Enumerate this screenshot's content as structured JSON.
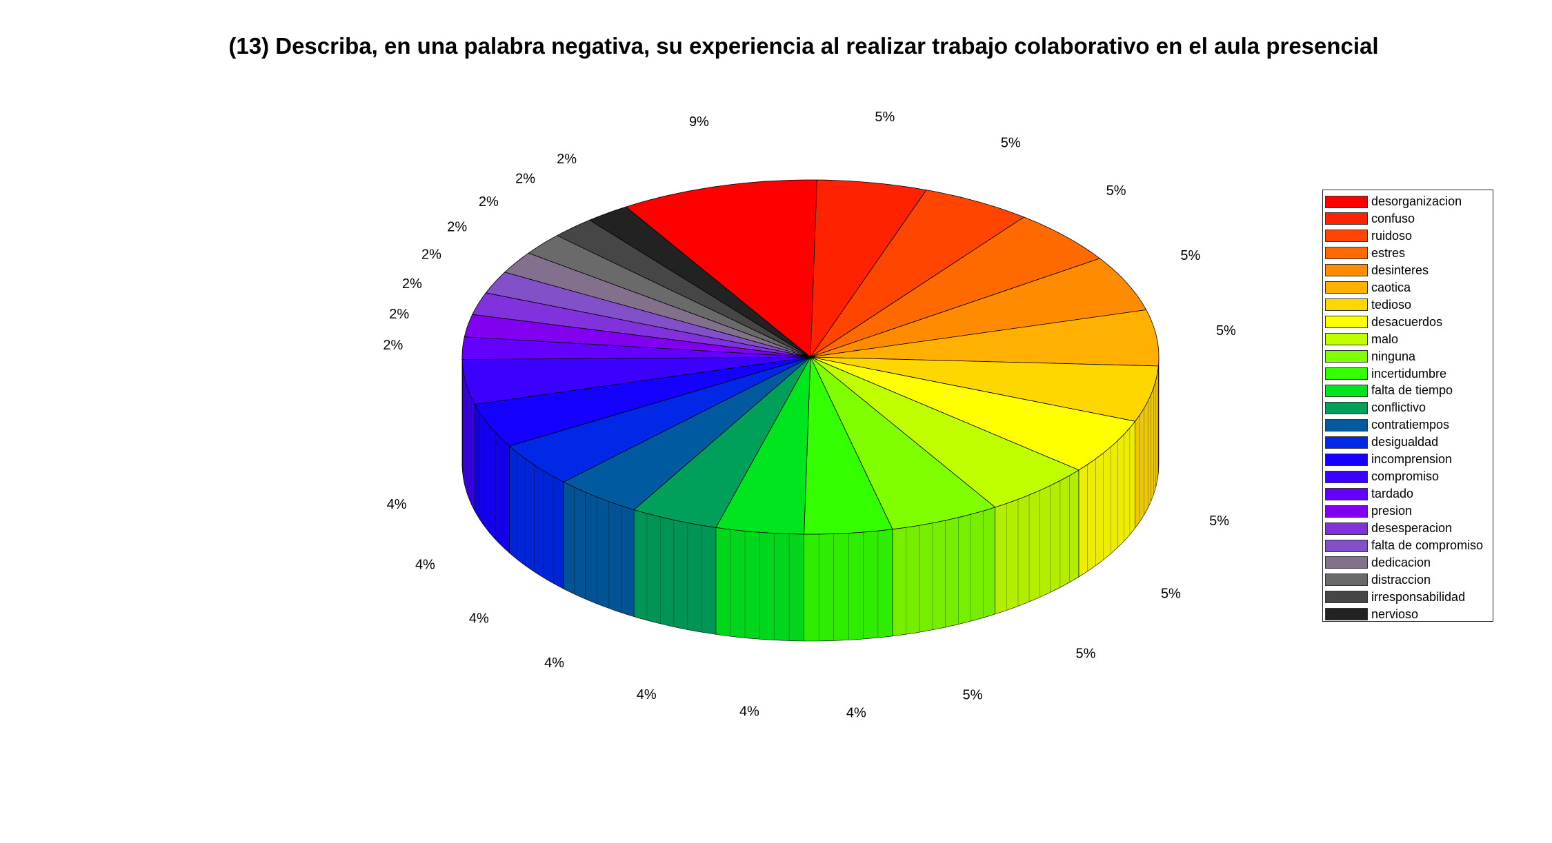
{
  "chart_data": {
    "type": "pie",
    "title": "(13) Describa, en una palabra negativa, su experiencia al realizar trabajo colaborativo en el aula presencial",
    "slices": [
      {
        "label": "desorganizacion",
        "value": 9,
        "text": "9%",
        "color": "#ff0000"
      },
      {
        "label": "confuso",
        "value": 5,
        "text": "5%",
        "color": "#ff2200"
      },
      {
        "label": "ruidoso",
        "value": 5,
        "text": "5%",
        "color": "#ff4500"
      },
      {
        "label": "estres",
        "value": 5,
        "text": "5%",
        "color": "#ff6a00"
      },
      {
        "label": "desinteres",
        "value": 5,
        "text": "5%",
        "color": "#ff8c00"
      },
      {
        "label": "caotica",
        "value": 5,
        "text": "5%",
        "color": "#ffb000"
      },
      {
        "label": "tedioso",
        "value": 5,
        "text": "5%",
        "color": "#ffd700"
      },
      {
        "label": "desacuerdos",
        "value": 5,
        "text": "5%",
        "color": "#ffff00"
      },
      {
        "label": "malo",
        "value": 5,
        "text": "5%",
        "color": "#c0ff00"
      },
      {
        "label": "ninguna",
        "value": 5,
        "text": "5%",
        "color": "#80ff00"
      },
      {
        "label": "incertidumbre",
        "value": 4,
        "text": "4%",
        "color": "#33ff00"
      },
      {
        "label": "falta de tiempo",
        "value": 4,
        "text": "4%",
        "color": "#00e61e"
      },
      {
        "label": "conflictivo",
        "value": 4,
        "text": "4%",
        "color": "#00a05a"
      },
      {
        "label": "contratiempos",
        "value": 4,
        "text": "4%",
        "color": "#005aa0"
      },
      {
        "label": "desigualdad",
        "value": 4,
        "text": "4%",
        "color": "#0028e6"
      },
      {
        "label": "incomprension",
        "value": 4,
        "text": "4%",
        "color": "#1400ff"
      },
      {
        "label": "compromiso",
        "value": 4,
        "text": "4%",
        "color": "#3c00ff"
      },
      {
        "label": "tardado",
        "value": 2,
        "text": "2%",
        "color": "#6400ff"
      },
      {
        "label": "presion",
        "value": 2,
        "text": "2%",
        "color": "#8200f0"
      },
      {
        "label": "desesperacion",
        "value": 2,
        "text": "2%",
        "color": "#8232dc"
      },
      {
        "label": "falta de compromiso",
        "value": 2,
        "text": "2%",
        "color": "#8250c8"
      },
      {
        "label": "dedicacion",
        "value": 2,
        "text": "2%",
        "color": "#82708c"
      },
      {
        "label": "distraccion",
        "value": 2,
        "text": "2%",
        "color": "#6a6a6a"
      },
      {
        "label": "irresponsabilidad",
        "value": 2,
        "text": "2%",
        "color": "#464646"
      },
      {
        "label": "nervioso",
        "value": 2,
        "text": "2%",
        "color": "#222222"
      }
    ],
    "legend_position": "right"
  }
}
